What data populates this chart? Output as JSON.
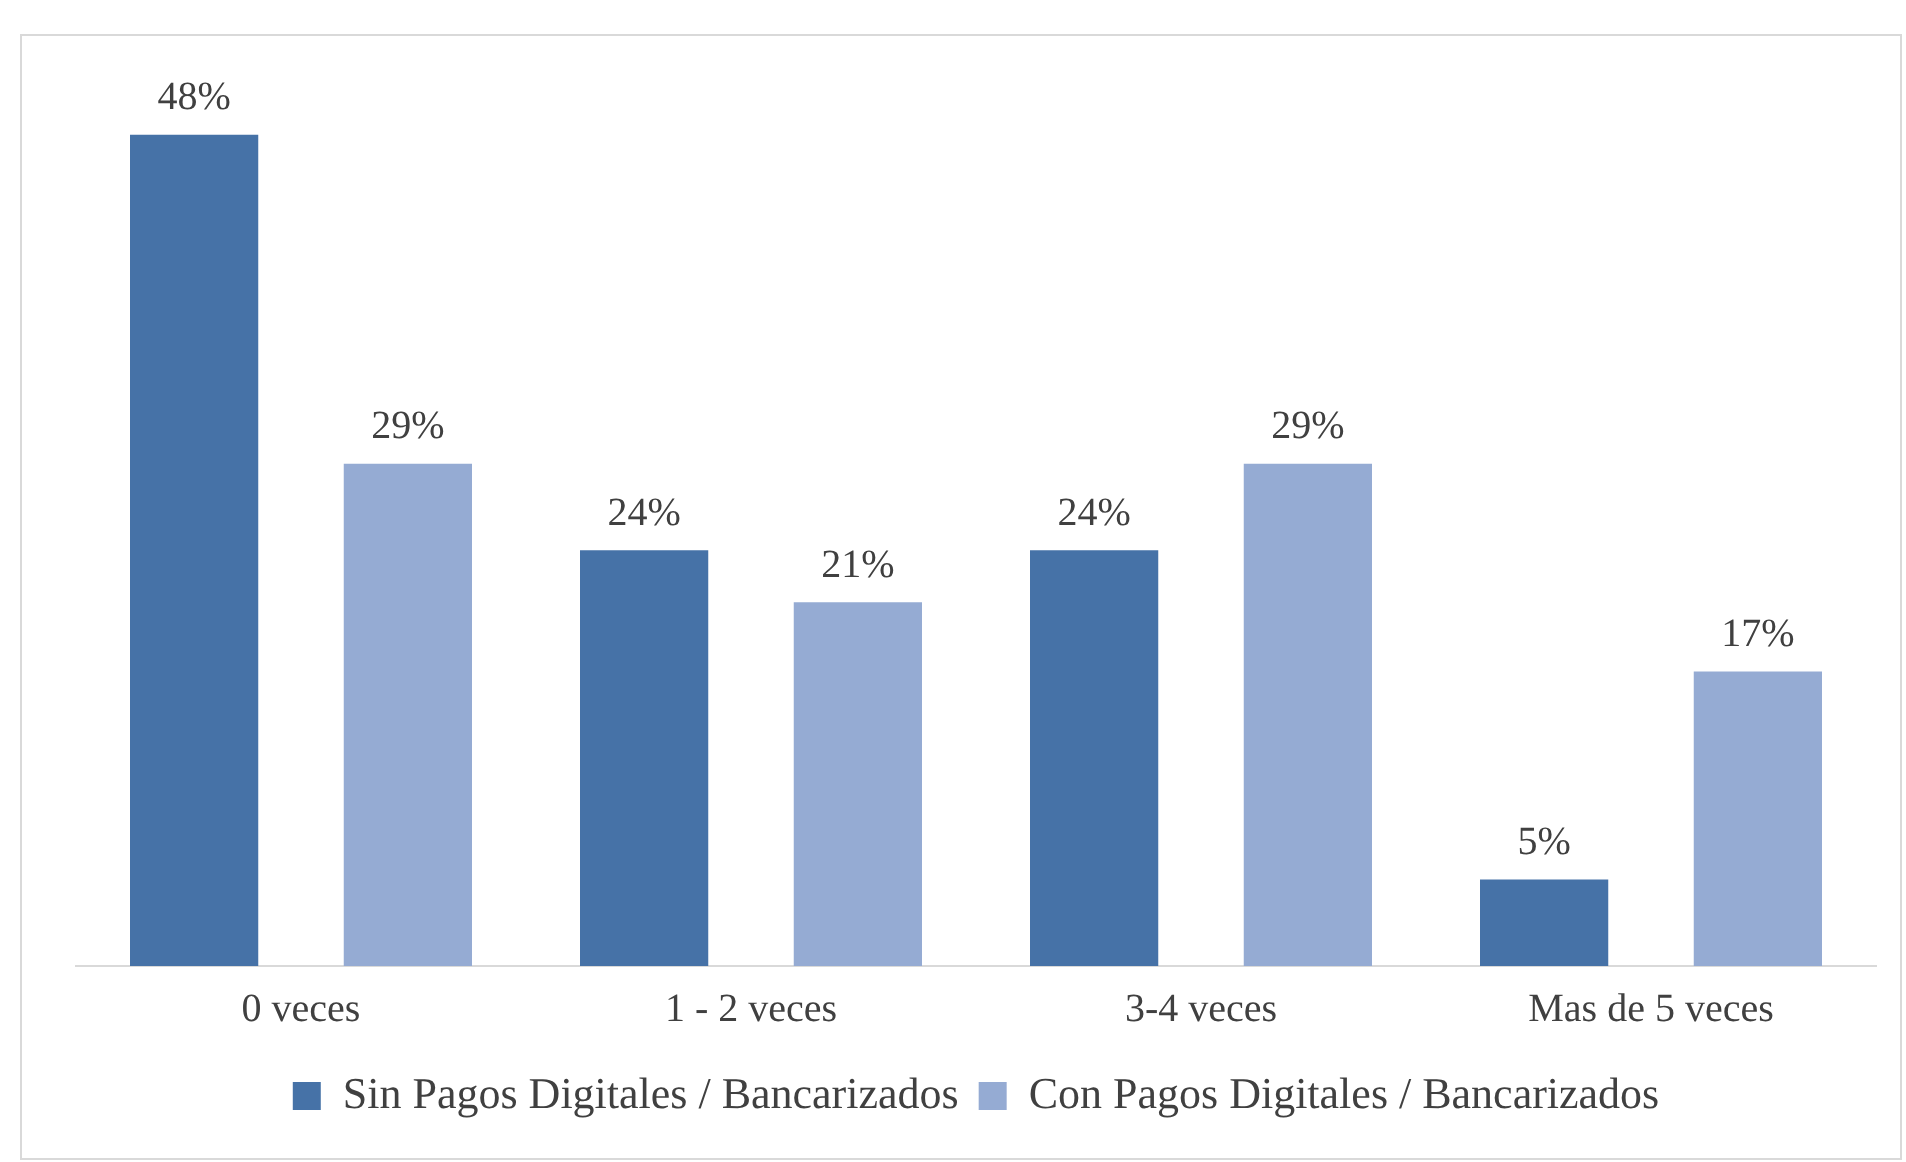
{
  "chart_data": {
    "type": "bar",
    "categories": [
      "0 veces",
      "1 - 2 veces",
      "3-4 veces",
      "Mas de 5 veces"
    ],
    "series": [
      {
        "name": "Sin Pagos Digitales / Bancarizados",
        "color": "#4672a7",
        "values": [
          48,
          24,
          24,
          5
        ],
        "value_labels": [
          "48%",
          "24%",
          "24%",
          "5%"
        ]
      },
      {
        "name": "Con Pagos Digitales / Bancarizados",
        "color": "#95abd3",
        "values": [
          29,
          21,
          29,
          17
        ],
        "value_labels": [
          "29%",
          "21%",
          "29%",
          "17%"
        ]
      }
    ],
    "grid": false,
    "legend": "bottom"
  }
}
